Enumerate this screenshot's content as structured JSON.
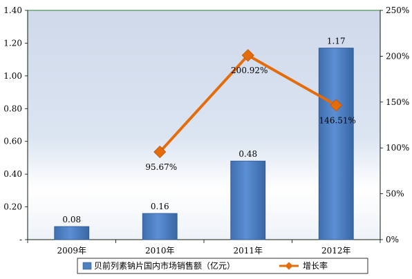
{
  "chart_data": {
    "type": "bar",
    "categories": [
      "2009年",
      "2010年",
      "2011年",
      "2012年"
    ],
    "series": [
      {
        "name": "贝前列素钠片国内市场销售额（亿元）",
        "type": "bar",
        "axis": "left",
        "values": [
          0.08,
          0.16,
          0.48,
          1.17
        ],
        "labels": [
          "0.08",
          "0.16",
          "0.48",
          "1.17"
        ],
        "color": "#4f81bd"
      },
      {
        "name": "增长率",
        "type": "line",
        "axis": "right",
        "values": [
          null,
          95.67,
          200.92,
          146.51
        ],
        "labels": [
          "",
          "95.67%",
          "200.92%",
          "146.51%"
        ],
        "color": "#e46c0a"
      }
    ],
    "y_left": {
      "ylim": [
        0,
        1.4
      ],
      "ticks": [
        0,
        0.2,
        0.4,
        0.6,
        0.8,
        1.0,
        1.2,
        1.4
      ],
      "tick_labels": [
        "-",
        "0.20",
        "0.40",
        "0.60",
        "0.80",
        "1.00",
        "1.20",
        "1.40"
      ]
    },
    "y_right": {
      "ylim": [
        0,
        250
      ],
      "ticks": [
        0,
        50,
        100,
        150,
        200,
        250
      ],
      "tick_labels": [
        "0%",
        "50%",
        "100%",
        "150%",
        "200%",
        "250%"
      ]
    },
    "grid": false,
    "legend": "bottom",
    "plot_border_color": "#2e7d32"
  }
}
